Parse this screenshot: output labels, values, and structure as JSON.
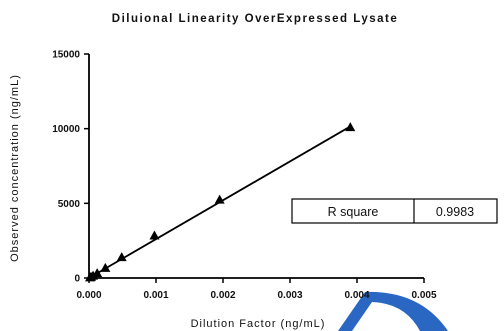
{
  "chart_data": {
    "type": "scatter",
    "title": "Diluional Linearity OverExpressed Lysate",
    "xlabel": "Dilution Factor (ng/mL)",
    "ylabel": "Observed concentration (ng/mL)",
    "xlim": [
      0,
      0.005
    ],
    "ylim": [
      0,
      15000
    ],
    "x_ticks": [
      0.0,
      0.001,
      0.002,
      0.003,
      0.004,
      0.005
    ],
    "x_tick_labels": [
      "0.000",
      "0.001",
      "0.002",
      "0.003",
      "0.004",
      "0.005"
    ],
    "y_ticks": [
      0,
      5000,
      10000,
      15000
    ],
    "y_tick_labels": [
      "0",
      "5000",
      "10000",
      "15000"
    ],
    "grid": false,
    "series": [
      {
        "marker": "triangle",
        "color": "#000000",
        "points": [
          {
            "x": 1.53e-05,
            "y": 40
          },
          {
            "x": 3.05e-05,
            "y": 80
          },
          {
            "x": 6.1e-05,
            "y": 160
          },
          {
            "x": 0.000122,
            "y": 330
          },
          {
            "x": 0.000244,
            "y": 680
          },
          {
            "x": 0.000488,
            "y": 1400
          },
          {
            "x": 0.000977,
            "y": 2850
          },
          {
            "x": 0.00195,
            "y": 5250
          },
          {
            "x": 0.0039,
            "y": 10100
          }
        ],
        "fit_line": {
          "x": [
            0.0,
            0.0039
          ],
          "y": [
            0,
            10150
          ]
        }
      }
    ],
    "annotation": {
      "label": "R square",
      "value": "0.9983"
    }
  },
  "colors": {
    "axis": "#000000",
    "marker": "#000000",
    "watermark": "#1f5fbf"
  }
}
